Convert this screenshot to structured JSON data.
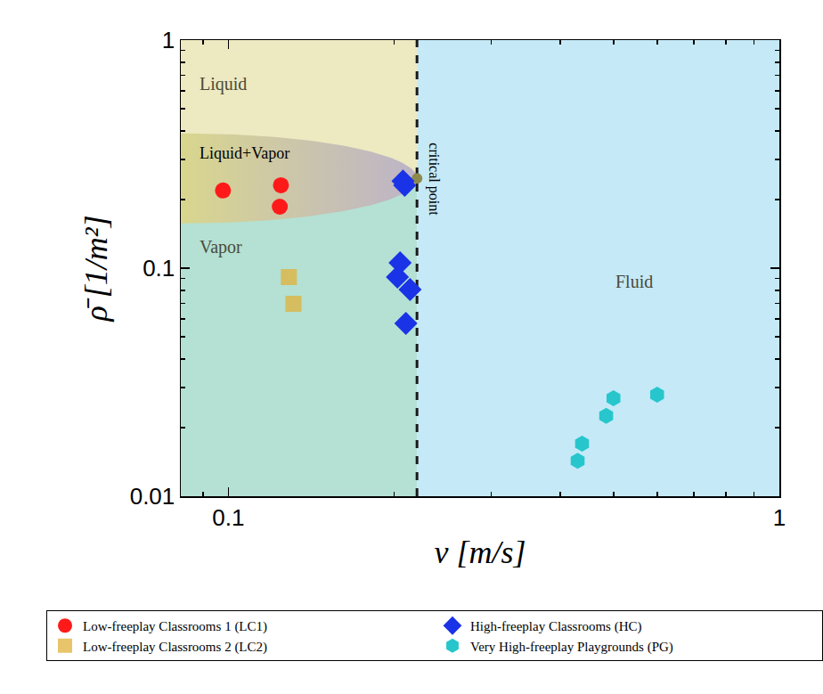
{
  "chart_data": {
    "type": "scatter",
    "x_label": "v [m/s]",
    "y_label": "ρ̄ [1/m²]",
    "log": true,
    "xlim": [
      0.082,
      1
    ],
    "ylim": [
      0.01,
      1
    ],
    "xticks": [
      0.1,
      1
    ],
    "yticks": [
      0.01,
      0.1,
      1
    ],
    "legend": "bottom",
    "regions": [
      {
        "label": "Liquid",
        "color": "#ede9c1",
        "v": [
          0.082,
          0.22
        ],
        "rho": [
          0.25,
          1
        ],
        "label_at": [
          0.088,
          0.64
        ]
      },
      {
        "label": "Vapor",
        "color": "#b4e1d3",
        "v": [
          0.082,
          0.22
        ],
        "rho": [
          0.01,
          0.25
        ],
        "label_at": [
          0.088,
          0.124
        ]
      },
      {
        "label": "Fluid",
        "color": "#c5e9f7",
        "v": [
          0.22,
          1
        ],
        "rho": [
          0.01,
          1
        ],
        "label_at": [
          0.5,
          0.087
        ]
      }
    ],
    "coexistence": {
      "label": "Liquid+Vapor",
      "colors": [
        "#d9d68e",
        "#bdb4c8"
      ],
      "v": [
        0.082,
        0.22
      ],
      "rho": [
        0.157,
        0.39
      ],
      "label_at": [
        0.088,
        0.32
      ]
    },
    "critical_point": {
      "label": "critical point",
      "v": 0.22,
      "rho": 0.2475,
      "color": "#8c8a4c",
      "label_at": [
        0.236,
        0.245
      ]
    },
    "series": [
      {
        "name": "Low-freeplay Classrooms 1 (LC1)",
        "color": "#ff1a1a",
        "marker": "circle",
        "x": [
          0.0978,
          0.1246,
          0.124
        ],
        "values": [
          0.219,
          0.231,
          0.186
        ]
      },
      {
        "name": "High-freeplay Classrooms (HC)",
        "color": "#1a33e6",
        "marker": "diamond",
        "x": [
          0.2075,
          0.209,
          0.205,
          0.2027,
          0.2137,
          0.21
        ],
        "values": [
          0.241,
          0.231,
          0.1055,
          0.0914,
          0.0805,
          0.0573
        ]
      },
      {
        "name": "Low-freeplay Classrooms 2 (LC2)",
        "color": "#e0b03a",
        "marker": "square",
        "x": [
          0.1288,
          0.1313
        ],
        "values": [
          0.0914,
          0.0698
        ]
      },
      {
        "name": "Very High-freeplay Playgrounds (PG)",
        "color": "#27c6cc",
        "marker": "hexagon",
        "x": [
          0.4305,
          0.4385,
          0.485,
          0.5,
          0.6
        ],
        "values": [
          0.0143,
          0.017,
          0.0225,
          0.0269,
          0.0279
        ]
      }
    ]
  }
}
